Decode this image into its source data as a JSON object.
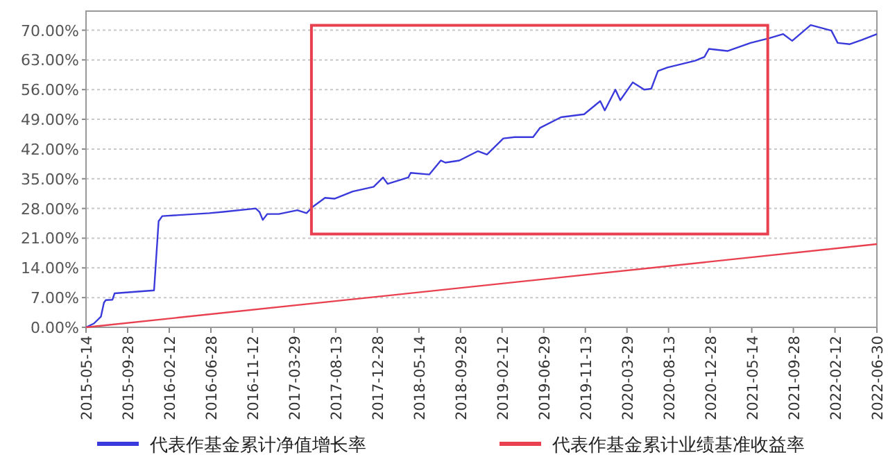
{
  "chart_data": {
    "type": "line",
    "xlim": [
      "2015-05-14",
      "2022-06-30"
    ],
    "xticks": [
      "2015-05-14",
      "2015-09-28",
      "2016-02-12",
      "2016-06-28",
      "2016-11-12",
      "2017-03-29",
      "2017-08-13",
      "2017-12-28",
      "2018-05-14",
      "2018-09-28",
      "2019-02-12",
      "2019-06-29",
      "2019-11-13",
      "2020-03-29",
      "2020-08-13",
      "2020-12-28",
      "2021-05-14",
      "2021-09-28",
      "2022-02-12",
      "2022-06-30"
    ],
    "ylim": [
      0,
      74.5
    ],
    "yticks": [
      {
        "value": 0,
        "label": "0.00%"
      },
      {
        "value": 7,
        "label": "7.00%"
      },
      {
        "value": 14,
        "label": "14.00%"
      },
      {
        "value": 21,
        "label": "21.00%"
      },
      {
        "value": 28,
        "label": "28.00%"
      },
      {
        "value": 35,
        "label": "35.00%"
      },
      {
        "value": 42,
        "label": "42.00%"
      },
      {
        "value": 49,
        "label": "49.00%"
      },
      {
        "value": 56,
        "label": "56.00%"
      },
      {
        "value": 63,
        "label": "63.00%"
      },
      {
        "value": 70,
        "label": "70.00%"
      }
    ],
    "grid": "y",
    "legend": "bottom",
    "line_style": "solid",
    "series": [
      {
        "name": "代表作基金累计净值增长率",
        "color": "#3a3adc",
        "x": [
          "2015-05-14",
          "2015-06-09",
          "2015-07-02",
          "2015-07-12",
          "2015-07-18",
          "2015-08-09",
          "2015-08-16",
          "2015-12-24",
          "2015-12-31",
          "2016-01-08",
          "2016-01-20",
          "2016-06-23",
          "2016-08-08",
          "2016-11-23",
          "2016-12-05",
          "2016-12-16",
          "2016-12-31",
          "2017-02-07",
          "2017-04-09",
          "2017-05-09",
          "2017-05-28",
          "2017-07-09",
          "2017-08-09",
          "2017-10-08",
          "2017-12-16",
          "2018-01-16",
          "2018-01-31",
          "2018-04-09",
          "2018-04-17",
          "2018-06-17",
          "2018-07-25",
          "2018-08-09",
          "2018-09-24",
          "2018-11-24",
          "2018-12-24",
          "2019-02-16",
          "2019-03-25",
          "2019-05-25",
          "2019-06-17",
          "2019-08-25",
          "2019-11-09",
          "2020-01-01",
          "2020-01-16",
          "2020-02-20",
          "2020-03-07",
          "2020-04-17",
          "2020-05-25",
          "2020-06-17",
          "2020-07-09",
          "2020-08-09",
          "2020-11-08",
          "2020-12-09",
          "2020-12-24",
          "2021-02-23",
          "2021-05-10",
          "2021-07-10",
          "2021-08-25",
          "2021-09-24",
          "2021-11-24",
          "2022-01-31",
          "2022-02-21",
          "2022-04-02",
          "2022-05-11",
          "2022-06-30"
        ],
        "values": [
          0,
          0.9,
          2.5,
          5.8,
          6.4,
          6.5,
          8.0,
          8.7,
          16.3,
          25.0,
          26.2,
          26.9,
          27.2,
          28.0,
          27.2,
          25.3,
          26.7,
          26.7,
          27.6,
          26.9,
          28.3,
          30.5,
          30.3,
          32.0,
          33.1,
          35.3,
          33.8,
          35.3,
          36.4,
          36.0,
          39.3,
          38.8,
          39.3,
          41.5,
          40.7,
          44.5,
          44.8,
          44.8,
          47.0,
          49.5,
          50.2,
          53.3,
          51.1,
          56.0,
          53.5,
          57.7,
          56.0,
          56.2,
          60.4,
          61.2,
          62.8,
          63.7,
          65.6,
          65.1,
          67.0,
          68.1,
          69.1,
          67.5,
          71.2,
          69.9,
          67.0,
          66.7,
          67.7,
          69.1
        ]
      },
      {
        "name": "代表作基金累计业绩基准收益率",
        "color": "#e8404f",
        "x": [
          "2015-05-14",
          "2022-06-30"
        ],
        "values": [
          0,
          19.6
        ]
      }
    ]
  }
}
